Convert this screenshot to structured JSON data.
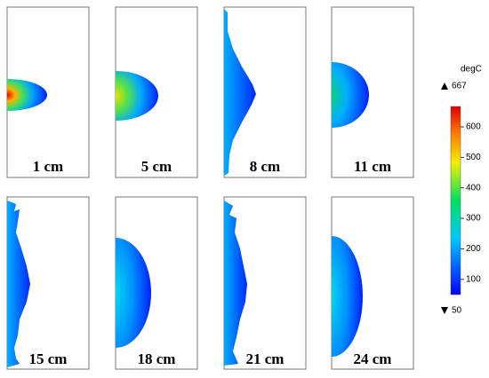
{
  "panels": [
    {
      "label": "1 cm"
    },
    {
      "label": "5 cm"
    },
    {
      "label": "8 cm"
    },
    {
      "label": "11 cm"
    },
    {
      "label": "15 cm"
    },
    {
      "label": "18 cm"
    },
    {
      "label": "21 cm"
    },
    {
      "label": "24 cm"
    }
  ],
  "colorbar": {
    "unit": "degC",
    "max": 667,
    "min": 50,
    "ticks": [
      100,
      200,
      300,
      400,
      500,
      600
    ]
  }
}
